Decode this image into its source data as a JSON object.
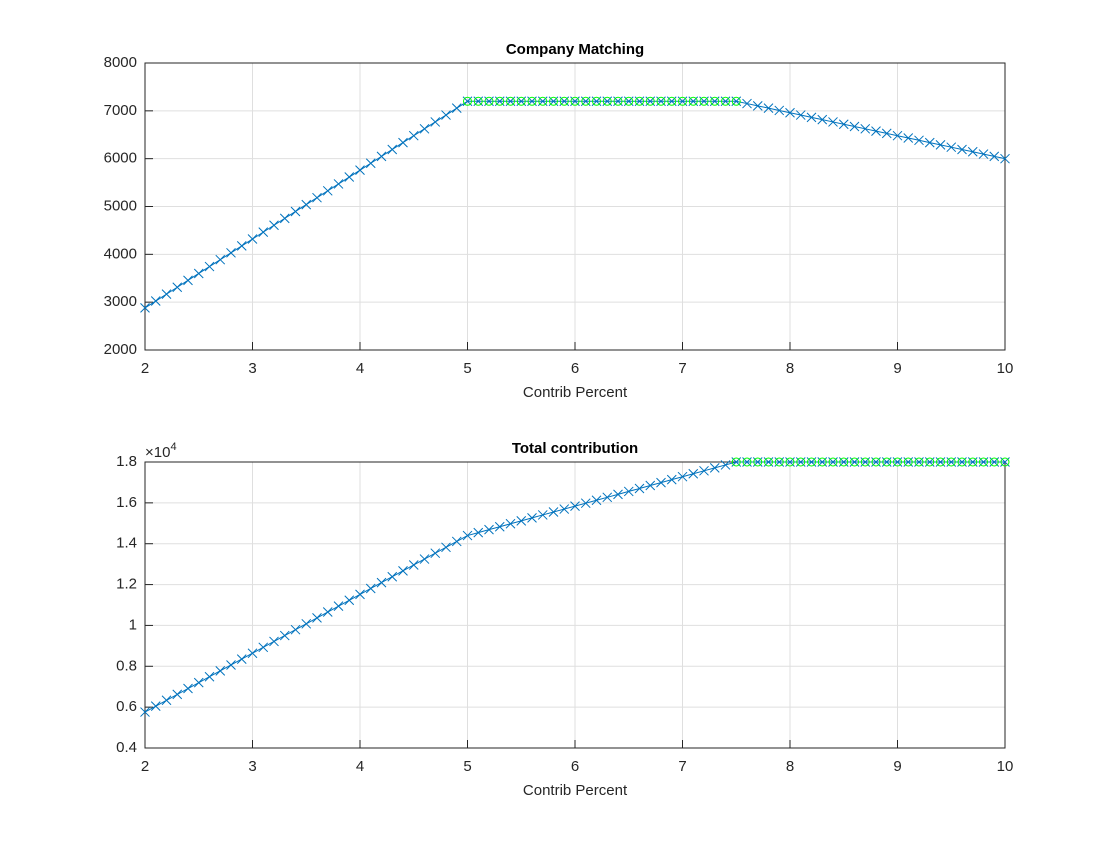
{
  "chart_data": [
    {
      "type": "line",
      "title": "Company Matching",
      "xlabel": "Contrib Percent",
      "x": [
        2,
        2.1,
        2.2,
        2.3,
        2.4,
        2.5,
        2.6,
        2.7,
        2.8,
        2.9,
        3,
        3.1,
        3.2,
        3.3,
        3.4,
        3.5,
        3.6,
        3.7,
        3.8,
        3.9,
        4,
        4.1,
        4.2,
        4.3,
        4.4,
        4.5,
        4.6,
        4.7,
        4.8,
        4.9,
        5,
        5.1,
        5.2,
        5.3,
        5.4,
        5.5,
        5.6,
        5.7,
        5.8,
        5.9,
        6,
        6.1,
        6.2,
        6.3,
        6.4,
        6.5,
        6.6,
        6.7,
        6.8,
        6.9,
        7,
        7.1,
        7.2,
        7.3,
        7.4,
        7.5,
        7.6,
        7.7,
        7.8,
        7.9,
        8,
        8.1,
        8.2,
        8.3,
        8.4,
        8.5,
        8.6,
        8.7,
        8.8,
        8.9,
        9,
        9.1,
        9.2,
        9.3,
        9.4,
        9.5,
        9.6,
        9.7,
        9.8,
        9.9,
        10
      ],
      "series": [
        {
          "color": "#0072bd",
          "marker": "x",
          "line": true,
          "values": [
            2880,
            3024,
            3168,
            3312,
            3456,
            3600,
            3744,
            3888,
            4032,
            4176,
            4320,
            4464,
            4608,
            4752,
            4896,
            5040,
            5184,
            5328,
            5472,
            5616,
            5760,
            5904,
            6048,
            6192,
            6336,
            6480,
            6624,
            6768,
            6912,
            7056,
            7200,
            7200,
            7200,
            7200,
            7200,
            7200,
            7200,
            7200,
            7200,
            7200,
            7200,
            7200,
            7200,
            7200,
            7200,
            7200,
            7200,
            7200,
            7200,
            7200,
            7200,
            7200,
            7200,
            7200,
            7200,
            7200,
            7152,
            7104,
            7056,
            7008,
            6960,
            6912,
            6864,
            6816,
            6768,
            6720,
            6672,
            6624,
            6576,
            6528,
            6480,
            6432,
            6384,
            6336,
            6288,
            6240,
            6192,
            6144,
            6096,
            6048,
            6000
          ]
        },
        {
          "color": "#00ff00",
          "marker": "o",
          "line": false,
          "values": [
            null,
            null,
            null,
            null,
            null,
            null,
            null,
            null,
            null,
            null,
            null,
            null,
            null,
            null,
            null,
            null,
            null,
            null,
            null,
            null,
            null,
            null,
            null,
            null,
            null,
            null,
            null,
            null,
            null,
            null,
            7200,
            7200,
            7200,
            7200,
            7200,
            7200,
            7200,
            7200,
            7200,
            7200,
            7200,
            7200,
            7200,
            7200,
            7200,
            7200,
            7200,
            7200,
            7200,
            7200,
            7200,
            7200,
            7200,
            7200,
            7200,
            7200,
            null,
            null,
            null,
            null,
            null,
            null,
            null,
            null,
            null,
            null,
            null,
            null,
            null,
            null,
            null,
            null,
            null,
            null,
            null,
            null,
            null,
            null,
            null,
            null,
            null
          ]
        }
      ],
      "xlim": [
        2,
        10
      ],
      "xticks": [
        2,
        3,
        4,
        5,
        6,
        7,
        8,
        9,
        10
      ],
      "ylim": [
        2000,
        8000
      ],
      "yticks": [
        2000,
        3000,
        4000,
        5000,
        6000,
        7000,
        8000
      ],
      "grid": true
    },
    {
      "type": "line",
      "title": "Total contribution",
      "xlabel": "Contrib Percent",
      "y_multiplier": "×10",
      "y_multiplier_exponent": "4",
      "x": [
        2,
        2.1,
        2.2,
        2.3,
        2.4,
        2.5,
        2.6,
        2.7,
        2.8,
        2.9,
        3,
        3.1,
        3.2,
        3.3,
        3.4,
        3.5,
        3.6,
        3.7,
        3.8,
        3.9,
        4,
        4.1,
        4.2,
        4.3,
        4.4,
        4.5,
        4.6,
        4.7,
        4.8,
        4.9,
        5,
        5.1,
        5.2,
        5.3,
        5.4,
        5.5,
        5.6,
        5.7,
        5.8,
        5.9,
        6,
        6.1,
        6.2,
        6.3,
        6.4,
        6.5,
        6.6,
        6.7,
        6.8,
        6.9,
        7,
        7.1,
        7.2,
        7.3,
        7.4,
        7.5,
        7.6,
        7.7,
        7.8,
        7.9,
        8,
        8.1,
        8.2,
        8.3,
        8.4,
        8.5,
        8.6,
        8.7,
        8.8,
        8.9,
        9,
        9.1,
        9.2,
        9.3,
        9.4,
        9.5,
        9.6,
        9.7,
        9.8,
        9.9,
        10
      ],
      "series": [
        {
          "color": "#0072bd",
          "marker": "x",
          "line": true,
          "values": [
            5760,
            6048,
            6336,
            6624,
            6912,
            7200,
            7488,
            7776,
            8064,
            8352,
            8640,
            8928,
            9216,
            9504,
            9792,
            10080,
            10368,
            10656,
            10944,
            11232,
            11520,
            11808,
            12096,
            12384,
            12672,
            12960,
            13248,
            13536,
            13824,
            14112,
            14400,
            14544,
            14688,
            14832,
            14976,
            15120,
            15264,
            15408,
            15552,
            15696,
            15840,
            15984,
            16128,
            16272,
            16416,
            16560,
            16704,
            16848,
            16992,
            17136,
            17280,
            17424,
            17568,
            17712,
            17856,
            18000,
            18000,
            18000,
            18000,
            18000,
            18000,
            18000,
            18000,
            18000,
            18000,
            18000,
            18000,
            18000,
            18000,
            18000,
            18000,
            18000,
            18000,
            18000,
            18000,
            18000,
            18000,
            18000,
            18000,
            18000,
            18000
          ]
        },
        {
          "color": "#00ff00",
          "marker": "o",
          "line": false,
          "values": [
            null,
            null,
            null,
            null,
            null,
            null,
            null,
            null,
            null,
            null,
            null,
            null,
            null,
            null,
            null,
            null,
            null,
            null,
            null,
            null,
            null,
            null,
            null,
            null,
            null,
            null,
            null,
            null,
            null,
            null,
            null,
            null,
            null,
            null,
            null,
            null,
            null,
            null,
            null,
            null,
            null,
            null,
            null,
            null,
            null,
            null,
            null,
            null,
            null,
            null,
            null,
            null,
            null,
            null,
            null,
            18000,
            18000,
            18000,
            18000,
            18000,
            18000,
            18000,
            18000,
            18000,
            18000,
            18000,
            18000,
            18000,
            18000,
            18000,
            18000,
            18000,
            18000,
            18000,
            18000,
            18000,
            18000,
            18000,
            18000,
            18000,
            18000
          ]
        }
      ],
      "xlim": [
        2,
        10
      ],
      "xticks": [
        2,
        3,
        4,
        5,
        6,
        7,
        8,
        9,
        10
      ],
      "ylim": [
        4000,
        18000
      ],
      "yticks": [
        {
          "value": 4000,
          "label": "0.4"
        },
        {
          "value": 6000,
          "label": "0.6"
        },
        {
          "value": 8000,
          "label": "0.8"
        },
        {
          "value": 10000,
          "label": "1"
        },
        {
          "value": 12000,
          "label": "1.2"
        },
        {
          "value": 14000,
          "label": "1.4"
        },
        {
          "value": 16000,
          "label": "1.6"
        },
        {
          "value": 18000,
          "label": "1.8"
        }
      ],
      "grid": true
    }
  ]
}
